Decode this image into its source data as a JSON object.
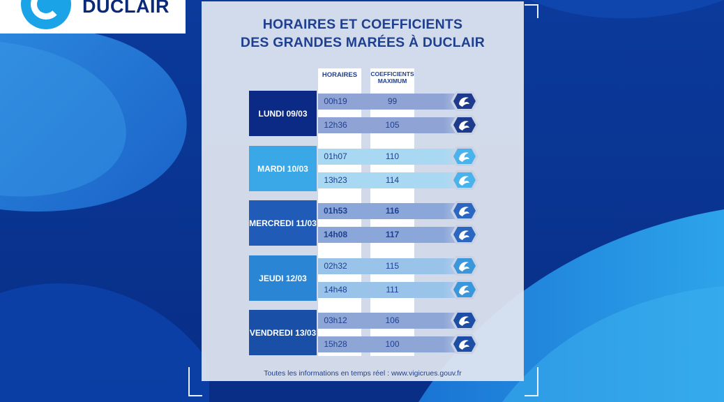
{
  "logo": {
    "name": "DUCLAIR"
  },
  "title": {
    "line1": "HORAIRES ET COEFFICIENTS",
    "line2": "DES GRANDES MARÉES À DUCLAIR"
  },
  "headers": {
    "times": "HORAIRES",
    "coef_line1": "COEFFICIENTS",
    "coef_line2": "MAXIMUM"
  },
  "days": [
    {
      "label": "LUNDI 09/03",
      "color": "#0b2a86",
      "tides": [
        {
          "time": "00h19",
          "coef": "99",
          "band": "#8fa4d4",
          "icon": "#1d3a8c"
        },
        {
          "time": "12h36",
          "coef": "105",
          "band": "#8fa4d4",
          "icon": "#1d3a8c"
        }
      ]
    },
    {
      "label": "MARDI 10/03",
      "color": "#3aa8e6",
      "tides": [
        {
          "time": "01h07",
          "coef": "110",
          "band": "#a9d8f2",
          "icon": "#4bb3ec"
        },
        {
          "time": "13h23",
          "coef": "114",
          "band": "#a9d8f2",
          "icon": "#4bb3ec"
        }
      ]
    },
    {
      "label": "MERCREDI 11/03",
      "color": "#1f5bb7",
      "tides": [
        {
          "time": "01h53",
          "coef": "116",
          "band": "#8ba7d9",
          "icon": "#2b66c0",
          "bold": true
        },
        {
          "time": "14h08",
          "coef": "117",
          "band": "#8ba7d9",
          "icon": "#2b66c0",
          "bold": true
        }
      ]
    },
    {
      "label": "JEUDI 12/03",
      "color": "#2a86d4",
      "tides": [
        {
          "time": "02h32",
          "coef": "115",
          "band": "#9ac3ea",
          "icon": "#3b97dc"
        },
        {
          "time": "14h48",
          "coef": "111",
          "band": "#9ac3ea",
          "icon": "#3b97dc"
        }
      ]
    },
    {
      "label": "VENDREDI 13/03",
      "color": "#1a4fa8",
      "tides": [
        {
          "time": "03h12",
          "coef": "106",
          "band": "#8ea6d6",
          "icon": "#1d4ea6"
        },
        {
          "time": "15h28",
          "coef": "100",
          "band": "#8ea6d6",
          "icon": "#1d4ea6"
        }
      ]
    }
  ],
  "footer": "Toutes les informations en temps réel : www.vigicrues.gouv.fr",
  "colors": {
    "background_dark": "#0a3fa0",
    "background_light": "#1e7fd8",
    "title": "#1f3f8f",
    "logo_accent": "#1aa3e6"
  },
  "icons": {
    "logo": "duclair-c-logo",
    "tide": "wave-hexagon-icon"
  }
}
